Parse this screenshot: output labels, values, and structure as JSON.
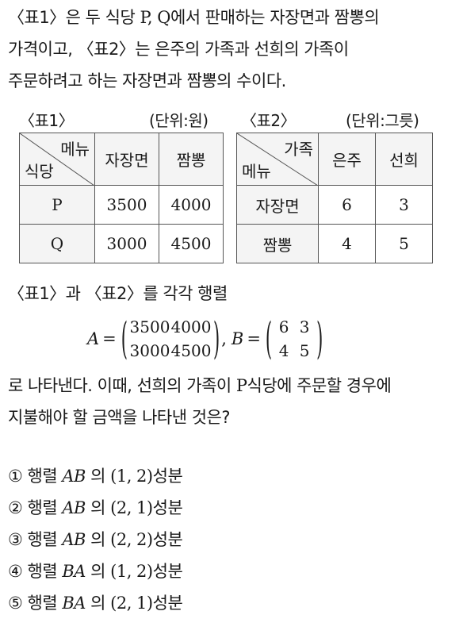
{
  "intro": {
    "l1a": "〈표1〉은 두 식당 ",
    "l1b": "P, Q",
    "l1c": "에서 판매하는 자장면과 짬뽕의",
    "l2": "가격이고, 〈표2〉는 은주의 가족과 선희의 가족이",
    "l3": "주문하려고 하는 자장면과 짬뽕의 수이다."
  },
  "table1": {
    "caption": "〈표1〉",
    "unit": "(단위:원)",
    "corner_top": "메뉴",
    "corner_bottom": "식당",
    "headers": [
      "자장면",
      "짬뽕"
    ],
    "rows": [
      {
        "label": "P",
        "values": [
          "3500",
          "4000"
        ]
      },
      {
        "label": "Q",
        "values": [
          "3000",
          "4500"
        ]
      }
    ]
  },
  "table2": {
    "caption": "〈표2〉",
    "unit": "(단위:그릇)",
    "corner_top": "가족",
    "corner_bottom": "메뉴",
    "headers": [
      "은주",
      "선희"
    ],
    "rows": [
      {
        "label": "자장면",
        "values": [
          "6",
          "3"
        ]
      },
      {
        "label": "짬뽕",
        "values": [
          "4",
          "5"
        ]
      }
    ]
  },
  "matrix_intro": "〈표1〉과 〈표2〉를 각각 행렬",
  "matrices": {
    "A_label": "A",
    "B_label": "B",
    "A": [
      [
        "3500",
        "4000"
      ],
      [
        "3000",
        "4500"
      ]
    ],
    "B": [
      [
        "6",
        "3"
      ],
      [
        "4",
        "5"
      ]
    ]
  },
  "question": {
    "l1a": "로 나타낸다. 이때, 선희의 가족이 ",
    "l1b": "P",
    "l1c": "식당에 주문할 경우에",
    "l2": "지불해야 할 금액을 나타낸 것은?"
  },
  "choices": [
    {
      "num": "①",
      "word": "행렬",
      "mat": "AB",
      "pre": "의",
      "idx": "(1, 2)",
      "post": "성분"
    },
    {
      "num": "②",
      "word": "행렬",
      "mat": "AB",
      "pre": "의",
      "idx": "(2, 1)",
      "post": "성분"
    },
    {
      "num": "③",
      "word": "행렬",
      "mat": "AB",
      "pre": "의",
      "idx": "(2, 2)",
      "post": "성분"
    },
    {
      "num": "④",
      "word": "행렬",
      "mat": "BA",
      "pre": "의",
      "idx": "(1, 2)",
      "post": "성분"
    },
    {
      "num": "⑤",
      "word": "행렬",
      "mat": "BA",
      "pre": "의",
      "idx": "(2, 1)",
      "post": "성분"
    }
  ]
}
